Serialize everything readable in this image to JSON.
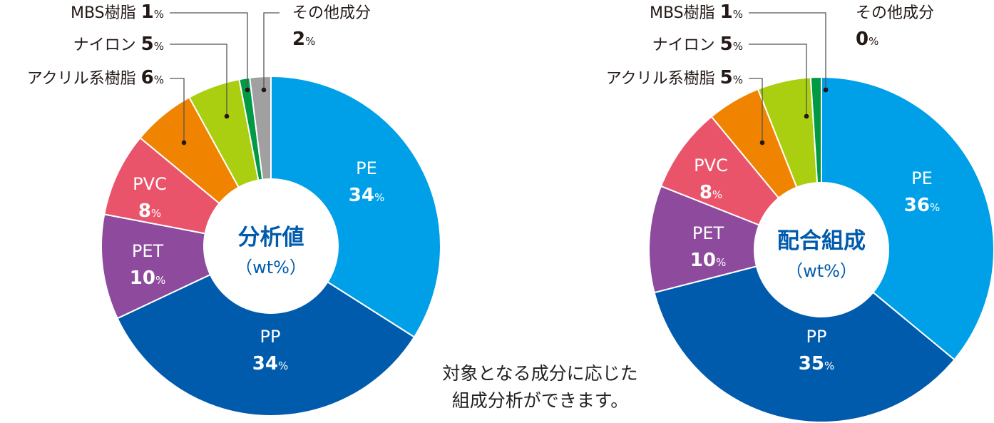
{
  "chart_data": [
    {
      "type": "pie",
      "title": "分析値",
      "subtitle": "（wt%）",
      "categories": [
        "PE",
        "PP",
        "PET",
        "PVC",
        "アクリル系樹脂",
        "ナイロン",
        "MBS樹脂",
        "その他成分"
      ],
      "values": [
        34,
        34,
        10,
        8,
        6,
        5,
        1,
        2
      ],
      "display_values": [
        "34",
        "34",
        "10",
        "8",
        "6",
        "5",
        "1",
        "2"
      ],
      "unit": "%",
      "colors": [
        "#00A0E9",
        "#005BAC",
        "#8E4A9C",
        "#E9546B",
        "#F08300",
        "#AACF10",
        "#009944",
        "#A0A0A0"
      ]
    },
    {
      "type": "pie",
      "title": "配合組成",
      "subtitle": "（wt%）",
      "categories": [
        "PE",
        "PP",
        "PET",
        "PVC",
        "アクリル系樹脂",
        "ナイロン",
        "MBS樹脂",
        "その他成分"
      ],
      "values": [
        36,
        35,
        10,
        8,
        5,
        5,
        1,
        0
      ],
      "display_values": [
        "36",
        "35",
        "10",
        "8",
        "5",
        "5",
        "1",
        "0"
      ],
      "unit": "%",
      "colors": [
        "#00A0E9",
        "#005BAC",
        "#8E4A9C",
        "#E9546B",
        "#F08300",
        "#AACF10",
        "#009944",
        "#A0A0A0"
      ]
    }
  ],
  "note": {
    "line1": "対象となる成分に応じた",
    "line2": "組成分析ができます。"
  },
  "colors": {
    "center_title": "#005BAC",
    "label_inside": "#ffffff",
    "label_outside": "#231815",
    "leader": "#555555"
  }
}
